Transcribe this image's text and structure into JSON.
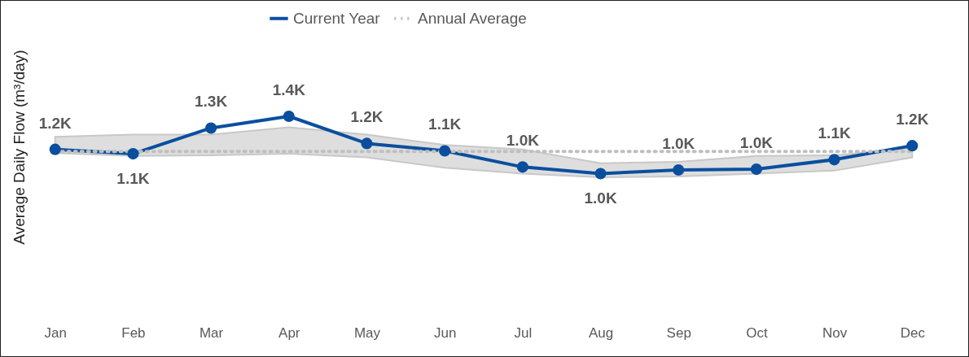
{
  "chart_data": {
    "type": "line",
    "ylabel": "Average Daily Flow (m³/day)",
    "legend": "top",
    "marker": "circle",
    "categories": [
      "Jan",
      "Feb",
      "Mar",
      "Apr",
      "May",
      "Jun",
      "Jul",
      "Aug",
      "Sep",
      "Oct",
      "Nov",
      "Dec"
    ],
    "series": [
      {
        "name": "Current Year",
        "color": "#0a4f9e",
        "line_style": "solid",
        "values": [
          1155,
          1125,
          1300,
          1380,
          1195,
          1145,
          1035,
          990,
          1015,
          1020,
          1085,
          1180
        ],
        "value_labels": [
          "1.2K",
          "1.1K",
          "1.3K",
          "1.4K",
          "1.2K",
          "1.1K",
          "1.0K",
          "1.0K",
          "1.0K",
          "1.0K",
          "1.1K",
          "1.2K"
        ],
        "lower": [
          1130,
          1110,
          1115,
          1125,
          1100,
          1030,
          990,
          965,
          970,
          990,
          1010,
          1100
        ],
        "upper": [
          1240,
          1255,
          1255,
          1305,
          1255,
          1185,
          1155,
          1060,
          1070,
          1110,
          1115,
          1165
        ]
      },
      {
        "name": "Annual Average",
        "color": "#bfbfbf",
        "line_style": "dotted",
        "marker": "none",
        "values": [
          1140,
          1140,
          1140,
          1140,
          1140,
          1140,
          1140,
          1140,
          1140,
          1140,
          1140,
          1140
        ]
      }
    ]
  }
}
